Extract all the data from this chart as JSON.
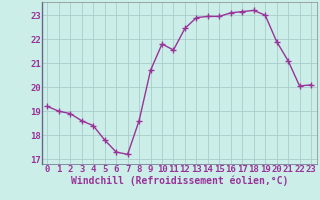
{
  "x": [
    0,
    1,
    2,
    3,
    4,
    5,
    6,
    7,
    8,
    9,
    10,
    11,
    12,
    13,
    14,
    15,
    16,
    17,
    18,
    19,
    20,
    21,
    22,
    23
  ],
  "y": [
    19.2,
    19.0,
    18.9,
    18.6,
    18.4,
    17.8,
    17.3,
    17.2,
    18.6,
    20.7,
    21.8,
    21.55,
    22.45,
    22.9,
    22.95,
    22.95,
    23.1,
    23.15,
    23.2,
    23.0,
    21.9,
    21.1,
    20.05,
    20.1
  ],
  "xlim": [
    -0.5,
    23.5
  ],
  "ylim": [
    16.8,
    23.55
  ],
  "yticks": [
    17,
    18,
    19,
    20,
    21,
    22,
    23
  ],
  "xticks": [
    0,
    1,
    2,
    3,
    4,
    5,
    6,
    7,
    8,
    9,
    10,
    11,
    12,
    13,
    14,
    15,
    16,
    17,
    18,
    19,
    20,
    21,
    22,
    23
  ],
  "xlabel": "Windchill (Refroidissement éolien,°C)",
  "line_color": "#993399",
  "marker": "+",
  "marker_size": 4,
  "background_color": "#cceee8",
  "grid_color": "#aacccc",
  "label_color": "#993399",
  "tick_color": "#993399",
  "axis_label_fontsize": 7,
  "tick_fontsize": 6.5,
  "linewidth": 1.0
}
